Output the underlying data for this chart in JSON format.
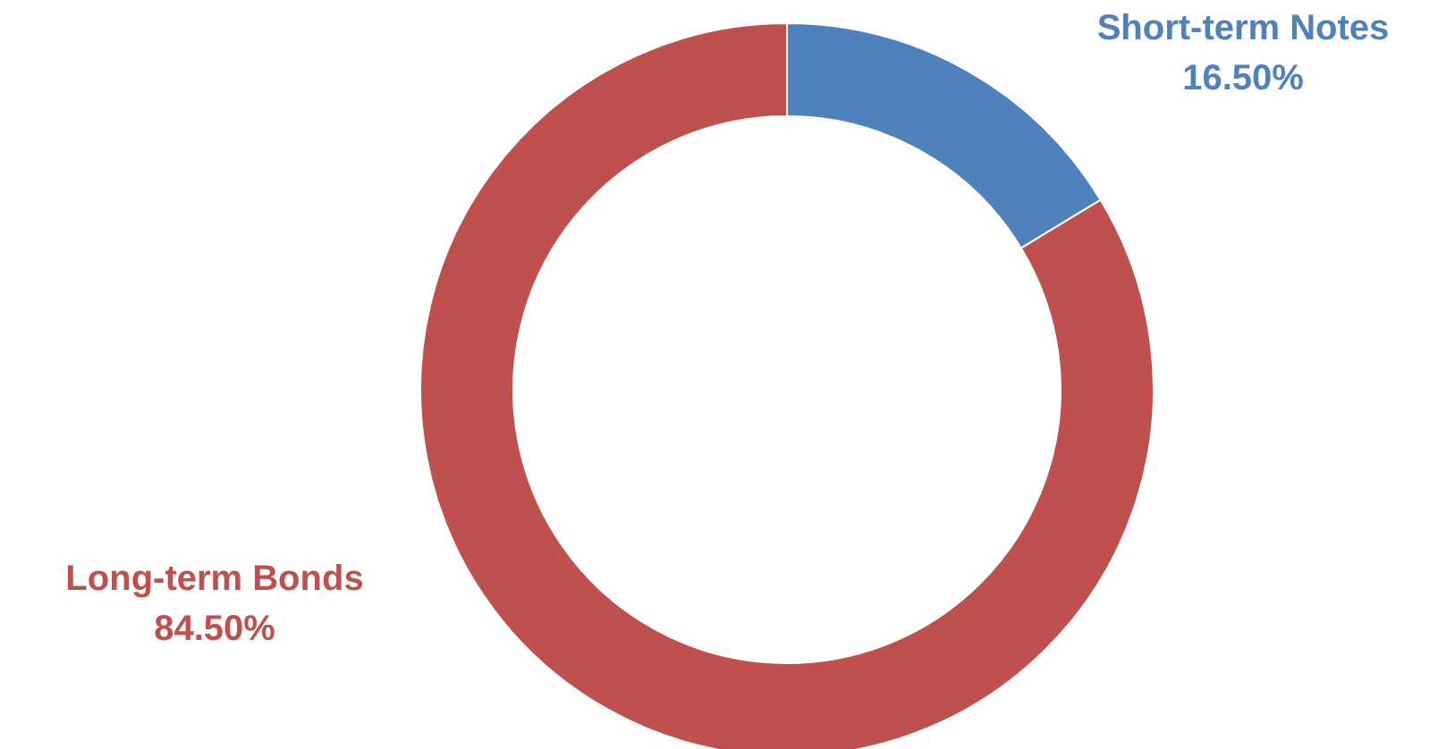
{
  "chart_data": {
    "type": "donut",
    "categories": [
      "Short-term Notes",
      "Long-term Bonds"
    ],
    "values": [
      16.5,
      84.5
    ],
    "colors": [
      "#4f81bd",
      "#c0504d"
    ],
    "value_labels": [
      "16.50%",
      "84.50%"
    ]
  }
}
